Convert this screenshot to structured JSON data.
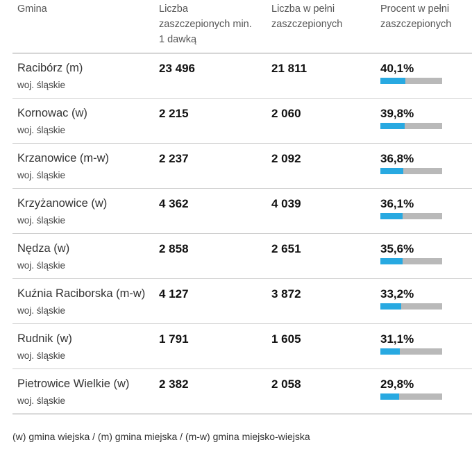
{
  "header": {
    "col_gmina": "Gmina",
    "col_dose1": "Liczba zaszczepionych min. 1 dawką",
    "col_full": "Liczba w pełni zaszczepionych",
    "col_pct": "Procent w pełni zaszczepionych"
  },
  "colors": {
    "bar_fill": "#28a9e1",
    "bar_track": "#b9b9b9"
  },
  "rows": [
    {
      "gmina": "Racibórz (m)",
      "region": "woj. śląskie",
      "dose1": "23 496",
      "full": "21 811",
      "pct": "40,1%",
      "pct_value": 40.1
    },
    {
      "gmina": "Kornowac (w)",
      "region": "woj. śląskie",
      "dose1": "2 215",
      "full": "2 060",
      "pct": "39,8%",
      "pct_value": 39.8
    },
    {
      "gmina": "Krzanowice (m-w)",
      "region": "woj. śląskie",
      "dose1": "2 237",
      "full": "2 092",
      "pct": "36,8%",
      "pct_value": 36.8
    },
    {
      "gmina": "Krzyżanowice (w)",
      "region": "woj. śląskie",
      "dose1": "4 362",
      "full": "4 039",
      "pct": "36,1%",
      "pct_value": 36.1
    },
    {
      "gmina": "Nędza (w)",
      "region": "woj. śląskie",
      "dose1": "2 858",
      "full": "2 651",
      "pct": "35,6%",
      "pct_value": 35.6
    },
    {
      "gmina": "Kuźnia Raciborska (m-w)",
      "region": "woj. śląskie",
      "dose1": "4 127",
      "full": "3 872",
      "pct": "33,2%",
      "pct_value": 33.2
    },
    {
      "gmina": "Rudnik (w)",
      "region": "woj. śląskie",
      "dose1": "1 791",
      "full": "1 605",
      "pct": "31,1%",
      "pct_value": 31.1
    },
    {
      "gmina": "Pietrowice Wielkie (w)",
      "region": "woj. śląskie",
      "dose1": "2 382",
      "full": "2 058",
      "pct": "29,8%",
      "pct_value": 29.8
    }
  ],
  "footnote": "(w) gmina wiejska / (m) gmina miejska / (m-w) gmina miejsko-wiejska"
}
